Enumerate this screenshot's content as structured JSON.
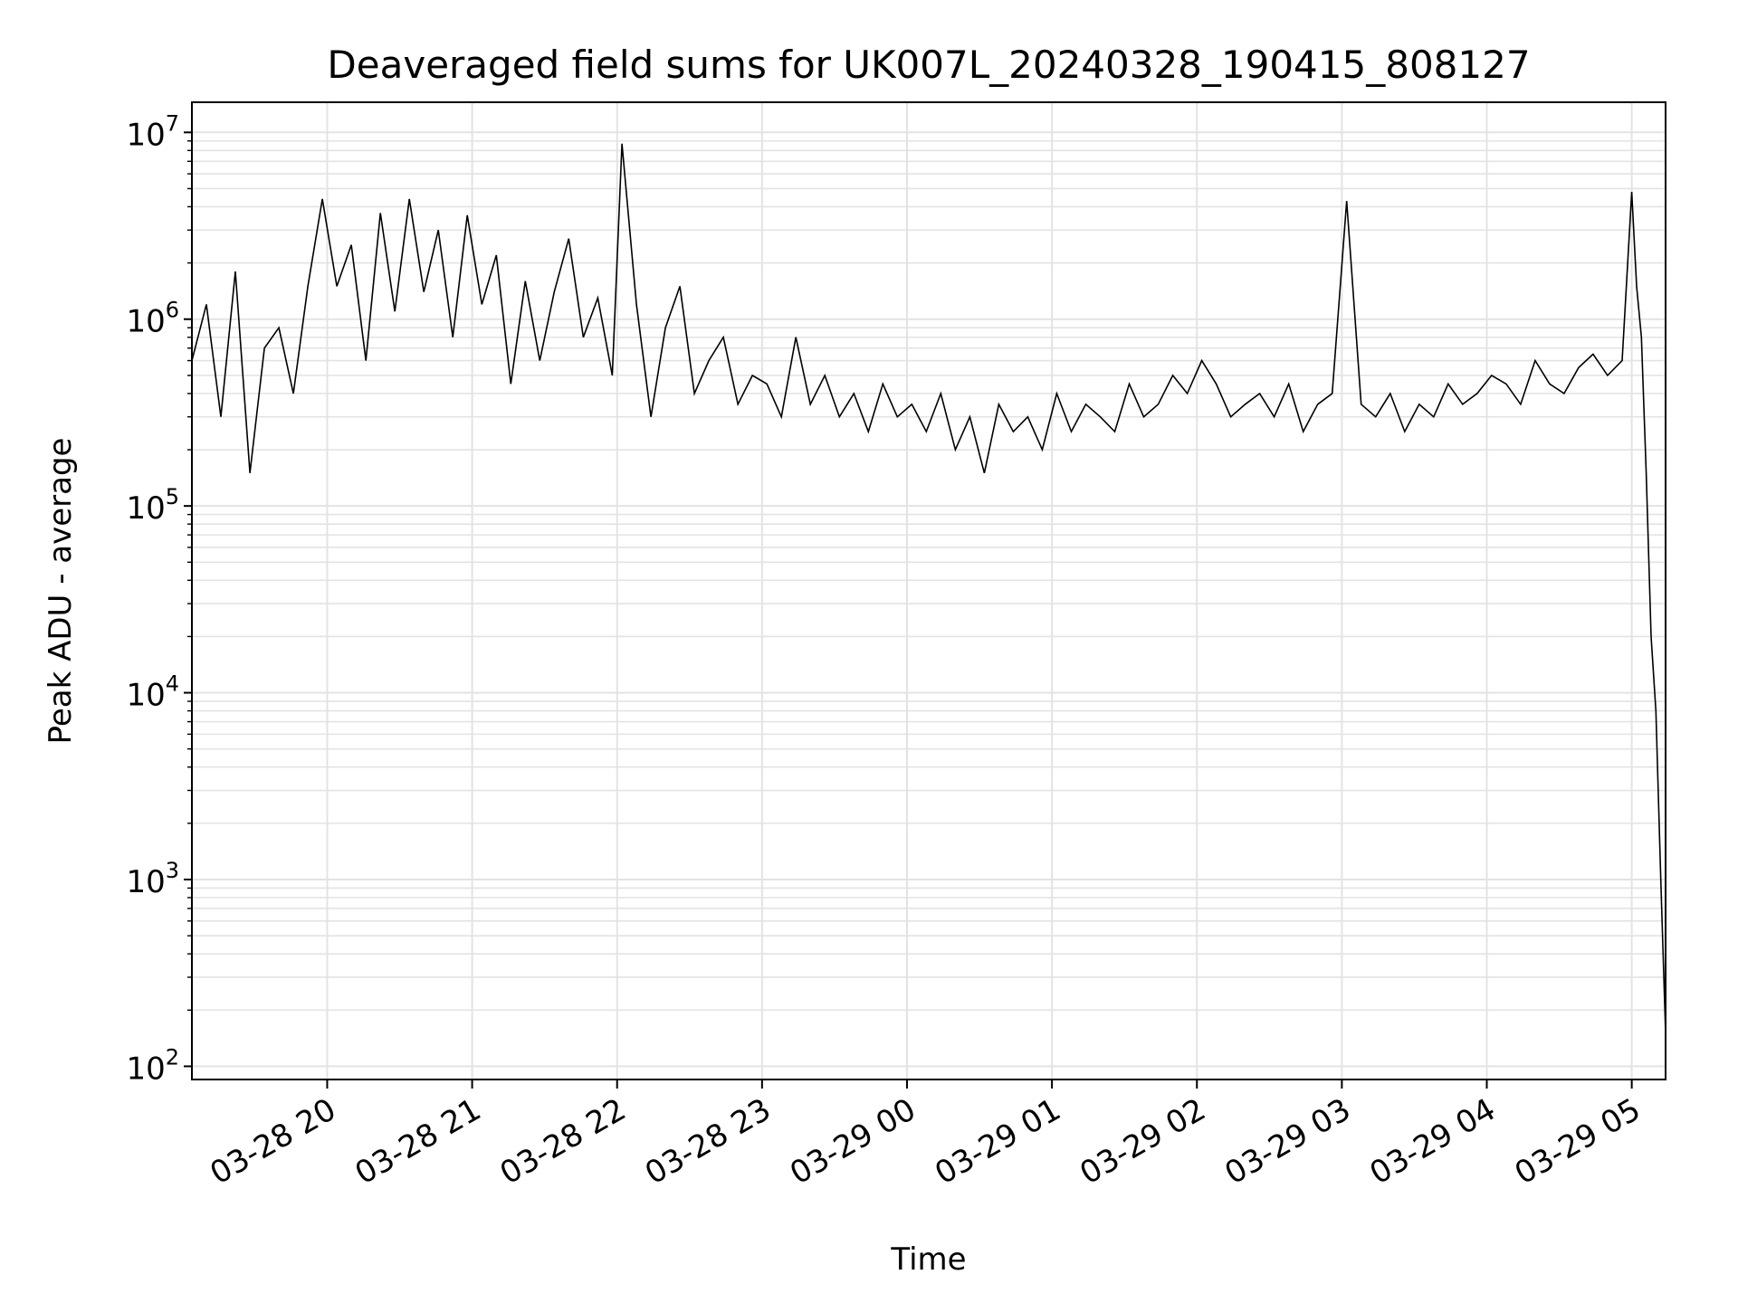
{
  "chart_data": {
    "type": "line",
    "title": "Deaveraged field sums for UK007L_20240328_190415_808127",
    "xlabel": "Time",
    "ylabel": "Peak ADU - average",
    "yscale": "log",
    "ylim": [
      85,
      14500000
    ],
    "xlim": [
      "2024-03-28 19:04",
      "2024-03-29 05:14"
    ],
    "x_ticks": [
      {
        "time": "2024-03-28 20:00",
        "label": "03-28 20"
      },
      {
        "time": "2024-03-28 21:00",
        "label": "03-28 21"
      },
      {
        "time": "2024-03-28 22:00",
        "label": "03-28 22"
      },
      {
        "time": "2024-03-28 23:00",
        "label": "03-28 23"
      },
      {
        "time": "2024-03-29 00:00",
        "label": "03-29 00"
      },
      {
        "time": "2024-03-29 01:00",
        "label": "03-29 01"
      },
      {
        "time": "2024-03-29 02:00",
        "label": "03-29 02"
      },
      {
        "time": "2024-03-29 03:00",
        "label": "03-29 03"
      },
      {
        "time": "2024-03-29 04:00",
        "label": "03-29 04"
      },
      {
        "time": "2024-03-29 05:00",
        "label": "03-29 05"
      }
    ],
    "y_ticks": [
      {
        "value": 100,
        "base": "10",
        "exp": "2"
      },
      {
        "value": 1000,
        "base": "10",
        "exp": "3"
      },
      {
        "value": 10000,
        "base": "10",
        "exp": "4"
      },
      {
        "value": 100000,
        "base": "10",
        "exp": "5"
      },
      {
        "value": 1000000,
        "base": "10",
        "exp": "6"
      },
      {
        "value": 10000000,
        "base": "10",
        "exp": "7"
      }
    ],
    "grid": true,
    "line_color": "#000000",
    "grid_color": "#e3e3e3",
    "series": [
      {
        "x": [
          "2024-03-28 19:04",
          "2024-03-28 19:10",
          "2024-03-28 19:16",
          "2024-03-28 19:22",
          "2024-03-28 19:28",
          "2024-03-28 19:34",
          "2024-03-28 19:40",
          "2024-03-28 19:46",
          "2024-03-28 19:52",
          "2024-03-28 19:58",
          "2024-03-28 20:04",
          "2024-03-28 20:10",
          "2024-03-28 20:16",
          "2024-03-28 20:22",
          "2024-03-28 20:28",
          "2024-03-28 20:34",
          "2024-03-28 20:40",
          "2024-03-28 20:46",
          "2024-03-28 20:52",
          "2024-03-28 20:58",
          "2024-03-28 21:04",
          "2024-03-28 21:10",
          "2024-03-28 21:16",
          "2024-03-28 21:22",
          "2024-03-28 21:28",
          "2024-03-28 21:34",
          "2024-03-28 21:40",
          "2024-03-28 21:46",
          "2024-03-28 21:52",
          "2024-03-28 21:58",
          "2024-03-28 22:02",
          "2024-03-28 22:08",
          "2024-03-28 22:14",
          "2024-03-28 22:20",
          "2024-03-28 22:26",
          "2024-03-28 22:32",
          "2024-03-28 22:38",
          "2024-03-28 22:44",
          "2024-03-28 22:50",
          "2024-03-28 22:56",
          "2024-03-28 23:02",
          "2024-03-28 23:08",
          "2024-03-28 23:14",
          "2024-03-28 23:20",
          "2024-03-28 23:26",
          "2024-03-28 23:32",
          "2024-03-28 23:38",
          "2024-03-28 23:44",
          "2024-03-28 23:50",
          "2024-03-28 23:56",
          "2024-03-29 00:02",
          "2024-03-29 00:08",
          "2024-03-29 00:14",
          "2024-03-29 00:20",
          "2024-03-29 00:26",
          "2024-03-29 00:32",
          "2024-03-29 00:38",
          "2024-03-29 00:44",
          "2024-03-29 00:50",
          "2024-03-29 00:56",
          "2024-03-29 01:02",
          "2024-03-29 01:08",
          "2024-03-29 01:14",
          "2024-03-29 01:20",
          "2024-03-29 01:26",
          "2024-03-29 01:32",
          "2024-03-29 01:38",
          "2024-03-29 01:44",
          "2024-03-29 01:50",
          "2024-03-29 01:56",
          "2024-03-29 02:02",
          "2024-03-29 02:08",
          "2024-03-29 02:14",
          "2024-03-29 02:20",
          "2024-03-29 02:26",
          "2024-03-29 02:32",
          "2024-03-29 02:38",
          "2024-03-29 02:44",
          "2024-03-29 02:50",
          "2024-03-29 02:56",
          "2024-03-29 03:02",
          "2024-03-29 03:08",
          "2024-03-29 03:14",
          "2024-03-29 03:20",
          "2024-03-29 03:26",
          "2024-03-29 03:32",
          "2024-03-29 03:38",
          "2024-03-29 03:44",
          "2024-03-29 03:50",
          "2024-03-29 03:56",
          "2024-03-29 04:02",
          "2024-03-29 04:08",
          "2024-03-29 04:14",
          "2024-03-29 04:20",
          "2024-03-29 04:26",
          "2024-03-29 04:32",
          "2024-03-29 04:38",
          "2024-03-29 04:44",
          "2024-03-29 04:50",
          "2024-03-29 04:56",
          "2024-03-29 05:00",
          "2024-03-29 05:02",
          "2024-03-29 05:04",
          "2024-03-29 05:06",
          "2024-03-29 05:08",
          "2024-03-29 05:10",
          "2024-03-29 05:12",
          "2024-03-29 05:14"
        ],
        "y": [
          600000,
          1200000,
          300000,
          1800000,
          150000,
          700000,
          900000,
          400000,
          1500000,
          4400000,
          1500000,
          2500000,
          600000,
          3700000,
          1100000,
          4400000,
          1400000,
          3000000,
          800000,
          3600000,
          1200000,
          2200000,
          450000,
          1600000,
          600000,
          1400000,
          2700000,
          800000,
          1300000,
          500000,
          8700000,
          1200000,
          300000,
          900000,
          1500000,
          400000,
          600000,
          800000,
          350000,
          500000,
          450000,
          300000,
          800000,
          350000,
          500000,
          300000,
          400000,
          250000,
          450000,
          300000,
          350000,
          250000,
          400000,
          200000,
          300000,
          150000,
          350000,
          250000,
          300000,
          200000,
          400000,
          250000,
          350000,
          300000,
          250000,
          450000,
          300000,
          350000,
          500000,
          400000,
          600000,
          450000,
          300000,
          350000,
          400000,
          300000,
          450000,
          250000,
          350000,
          400000,
          4300000,
          350000,
          300000,
          400000,
          250000,
          350000,
          300000,
          450000,
          350000,
          400000,
          500000,
          450000,
          350000,
          600000,
          450000,
          400000,
          550000,
          650000,
          500000,
          600000,
          4800000,
          1500000,
          800000,
          150000,
          20000,
          8000,
          1000,
          150
        ]
      }
    ]
  }
}
